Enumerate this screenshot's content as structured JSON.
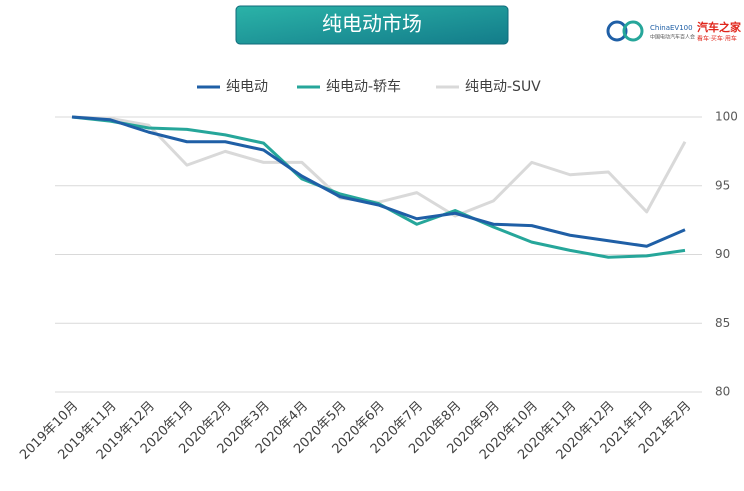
{
  "header": {
    "title": "纯电动市场",
    "logo_main": "ChinaEV100",
    "logo_sub": "中国电动汽车百人会",
    "brand": "汽车之家",
    "brand_sub": "看车·买车·用车"
  },
  "chart_data": {
    "type": "line",
    "categories": [
      "2019年10月",
      "2019年11月",
      "2019年12月",
      "2020年1月",
      "2020年2月",
      "2020年3月",
      "2020年4月",
      "2020年5月",
      "2020年6月",
      "2020年7月",
      "2020年8月",
      "2020年9月",
      "2020年10月",
      "2020年11月",
      "2020年12月",
      "2021年1月",
      "2021年2月"
    ],
    "series": [
      {
        "name": "纯电动",
        "color": "#1f5fa6",
        "values": [
          100,
          99.8,
          98.9,
          98.2,
          98.2,
          97.6,
          95.7,
          94.2,
          93.6,
          92.6,
          93.0,
          92.2,
          92.1,
          91.4,
          91.0,
          90.6,
          91.8
        ]
      },
      {
        "name": "纯电动-轿车",
        "color": "#26a69a",
        "values": [
          100,
          99.7,
          99.2,
          99.1,
          98.7,
          98.1,
          95.5,
          94.4,
          93.7,
          92.2,
          93.2,
          92.0,
          90.9,
          90.3,
          89.8,
          89.9,
          90.3
        ]
      },
      {
        "name": "纯电动-SUV",
        "color": "#d9d9d9",
        "values": [
          100,
          99.9,
          99.4,
          96.5,
          97.5,
          96.7,
          96.7,
          94.1,
          93.8,
          94.5,
          92.8,
          93.9,
          96.7,
          95.8,
          96.0,
          93.1,
          98.2
        ]
      }
    ],
    "ylim": [
      80,
      100
    ],
    "yticks": [
      80,
      85,
      90,
      95,
      100
    ],
    "grid": true,
    "legend": "top"
  }
}
